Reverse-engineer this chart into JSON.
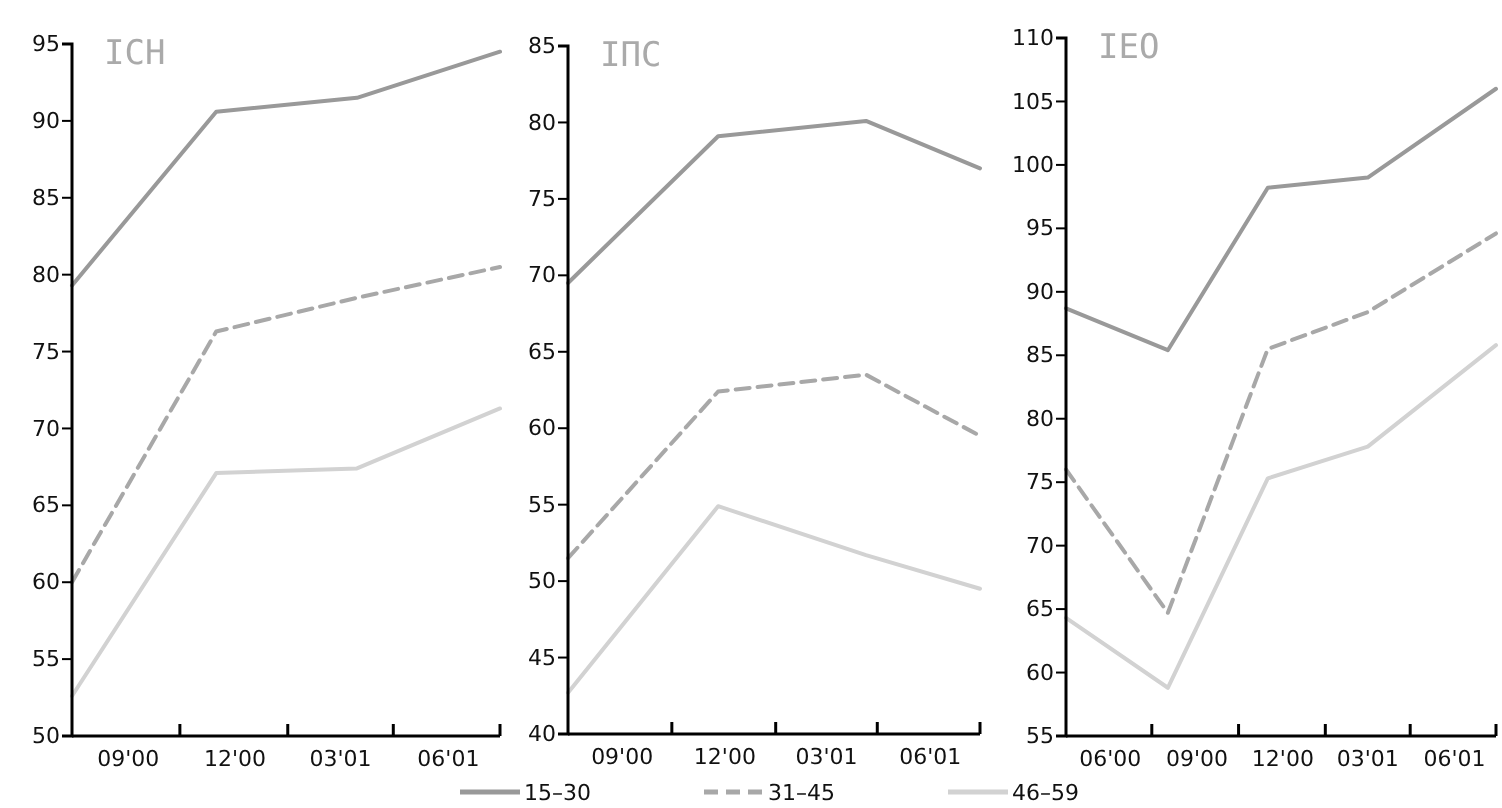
{
  "chart_data": [
    {
      "type": "line",
      "title": "ICH",
      "x": [
        "2000-07-15",
        "2000-11-15",
        "2001-03-15",
        "2001-07-15"
      ],
      "xlim": [
        "2000-07-15",
        "2001-07-15"
      ],
      "xticks": [
        {
          "value": "2000-09-01",
          "label": "09'00"
        },
        {
          "value": "2000-10-15",
          "label": null
        },
        {
          "value": "2000-12-01",
          "label": "12'00"
        },
        {
          "value": "2001-01-15",
          "label": null
        },
        {
          "value": "2001-03-01",
          "label": "03'01"
        },
        {
          "value": "2001-04-15",
          "label": null
        },
        {
          "value": "2001-06-01",
          "label": "06'01"
        },
        {
          "value": "2001-07-15",
          "label": null
        }
      ],
      "ylim": [
        50,
        95
      ],
      "yticks": [
        50,
        55,
        60,
        65,
        70,
        75,
        80,
        85,
        90,
        95
      ],
      "series": [
        {
          "color": "#999999",
          "line_style": "solid",
          "values": [
            79.3,
            90.6,
            91.5,
            94.5
          ]
        },
        {
          "color": "#a8a8a8",
          "line_style": "dashed",
          "values": [
            60.0,
            76.3,
            78.5,
            80.5
          ]
        },
        {
          "color": "#d2d2d2",
          "line_style": "solid",
          "values": [
            52.6,
            67.1,
            67.4,
            71.3
          ]
        }
      ]
    },
    {
      "type": "line",
      "title": "IПС",
      "x": [
        "2000-07-15",
        "2000-11-25",
        "2001-04-05",
        "2001-07-15"
      ],
      "xlim": [
        "2000-07-15",
        "2001-07-15"
      ],
      "xticks": [
        {
          "value": "2000-09-01",
          "label": "09'00"
        },
        {
          "value": "2000-10-15",
          "label": null
        },
        {
          "value": "2000-12-01",
          "label": "12'00"
        },
        {
          "value": "2001-01-15",
          "label": null
        },
        {
          "value": "2001-03-01",
          "label": "03'01"
        },
        {
          "value": "2001-04-15",
          "label": null
        },
        {
          "value": "2001-06-01",
          "label": "06'01"
        },
        {
          "value": "2001-07-15",
          "label": null
        }
      ],
      "ylim": [
        40,
        85
      ],
      "yticks": [
        40,
        45,
        50,
        55,
        60,
        65,
        70,
        75,
        80,
        85
      ],
      "legend": "bottom",
      "series": [
        {
          "name": "15–30",
          "color": "#999999",
          "line_style": "solid",
          "values": [
            69.5,
            79.1,
            80.1,
            77.0
          ]
        },
        {
          "name": "31–45",
          "color": "#a8a8a8",
          "line_style": "dashed",
          "values": [
            51.5,
            62.4,
            63.5,
            59.5
          ]
        },
        {
          "name": "46–59",
          "color": "#d2d2d2",
          "line_style": "solid",
          "values": [
            42.7,
            54.9,
            51.7,
            49.5
          ]
        }
      ]
    },
    {
      "type": "line",
      "title": "IEO",
      "x": [
        "2000-04-15",
        "2000-08-01",
        "2000-11-15",
        "2001-03-01",
        "2001-07-15"
      ],
      "xlim": [
        "2000-04-15",
        "2001-07-15"
      ],
      "xticks": [
        {
          "value": "2000-06-01",
          "label": "06'00"
        },
        {
          "value": "2000-07-15",
          "label": null
        },
        {
          "value": "2000-09-01",
          "label": "09'00"
        },
        {
          "value": "2000-10-15",
          "label": null
        },
        {
          "value": "2000-12-01",
          "label": "12'00"
        },
        {
          "value": "2001-01-15",
          "label": null
        },
        {
          "value": "2001-03-01",
          "label": "03'01"
        },
        {
          "value": "2001-04-15",
          "label": null
        },
        {
          "value": "2001-06-01",
          "label": "06'01"
        },
        {
          "value": "2001-07-15",
          "label": null
        }
      ],
      "ylim": [
        55,
        110
      ],
      "yticks": [
        55,
        60,
        65,
        70,
        75,
        80,
        85,
        90,
        95,
        100,
        105,
        110
      ],
      "series": [
        {
          "color": "#999999",
          "line_style": "solid",
          "values": [
            88.7,
            85.4,
            98.2,
            99.0,
            106.0
          ]
        },
        {
          "color": "#a8a8a8",
          "line_style": "dashed",
          "values": [
            76.0,
            64.7,
            85.5,
            88.4,
            94.6
          ]
        },
        {
          "color": "#d2d2d2",
          "line_style": "solid",
          "values": [
            64.3,
            58.8,
            75.3,
            77.8,
            85.8
          ]
        }
      ]
    }
  ]
}
